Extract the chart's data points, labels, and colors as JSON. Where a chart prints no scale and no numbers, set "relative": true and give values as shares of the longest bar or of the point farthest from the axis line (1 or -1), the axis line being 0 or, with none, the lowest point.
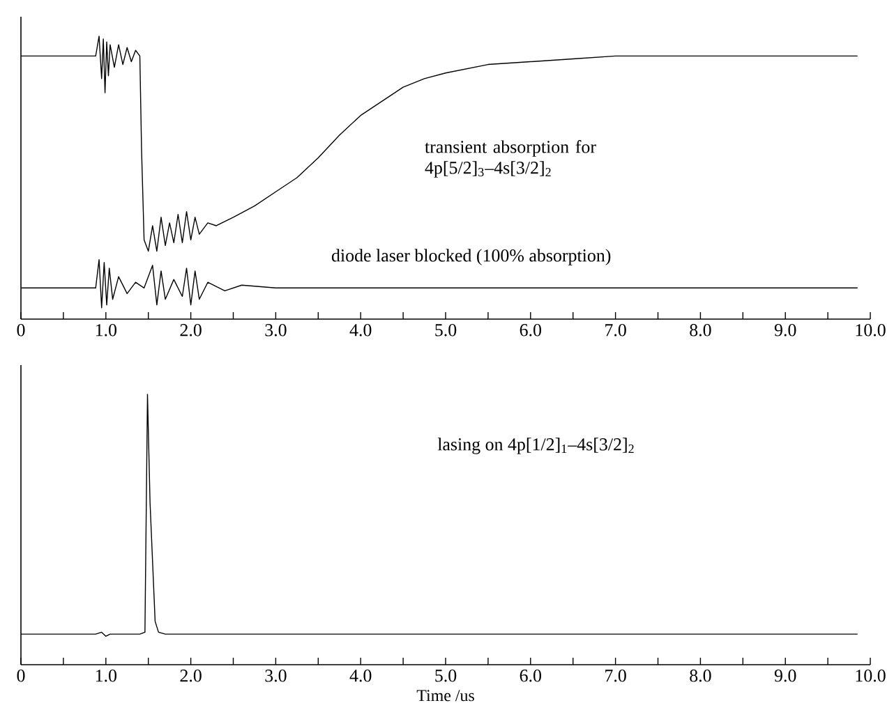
{
  "chart_data": [
    {
      "type": "line",
      "relative": true,
      "tick_labels": "x",
      "xlim": [
        0,
        10
      ],
      "xticks": [
        0,
        {
          "value": 0.5,
          "label": null
        },
        {
          "value": 1,
          "label": "1.0"
        },
        {
          "value": 1.5,
          "label": null
        },
        {
          "value": 2,
          "label": "2.0"
        },
        {
          "value": 2.5,
          "label": null
        },
        {
          "value": 3,
          "label": "3.0"
        },
        {
          "value": 3.5,
          "label": null
        },
        {
          "value": 4,
          "label": "4.0"
        },
        {
          "value": 4.5,
          "label": null
        },
        {
          "value": 5,
          "label": "5.0"
        },
        {
          "value": 5.5,
          "label": null
        },
        {
          "value": 6,
          "label": "6.0"
        },
        {
          "value": 6.5,
          "label": null
        },
        {
          "value": 7,
          "label": "7.0"
        },
        {
          "value": 7.5,
          "label": null
        },
        {
          "value": 8,
          "label": "8.0"
        },
        {
          "value": 8.5,
          "label": null
        },
        {
          "value": 9,
          "label": "9.0"
        },
        {
          "value": 9.5,
          "label": null
        },
        {
          "value": 10,
          "label": "10.0"
        }
      ],
      "annotations": [
        "transient absorption for 4p[5/2]$_{3}$–4s[3/2]$_{2}$",
        "diode laser blocked (100% absorption)"
      ],
      "series": [
        {
          "color": "#000000",
          "x": [
            0,
            0.5,
            0.88,
            0.92,
            0.95,
            0.97,
            0.99,
            1.01,
            1.03,
            1.05,
            1.1,
            1.15,
            1.2,
            1.25,
            1.3,
            1.35,
            1.4,
            1.42,
            1.45,
            1.5,
            1.55,
            1.6,
            1.65,
            1.7,
            1.75,
            1.8,
            1.85,
            1.9,
            1.95,
            2.0,
            2.05,
            2.1,
            2.2,
            2.3,
            2.5,
            2.75,
            3.0,
            3.25,
            3.5,
            3.75,
            4.0,
            4.25,
            4.5,
            4.75,
            5.0,
            5.5,
            6.0,
            6.5,
            7.0,
            8.0,
            9.0,
            9.85
          ],
          "values": [
            0.93,
            0.93,
            0.93,
            1.0,
            0.85,
            0.99,
            0.8,
            0.98,
            0.86,
            0.97,
            0.89,
            0.97,
            0.9,
            0.96,
            0.91,
            0.95,
            0.93,
            0.6,
            0.28,
            0.24,
            0.33,
            0.24,
            0.36,
            0.26,
            0.34,
            0.27,
            0.37,
            0.27,
            0.38,
            0.28,
            0.36,
            0.3,
            0.34,
            0.33,
            0.36,
            0.4,
            0.45,
            0.5,
            0.57,
            0.65,
            0.72,
            0.77,
            0.82,
            0.85,
            0.87,
            0.9,
            0.91,
            0.92,
            0.93,
            0.93,
            0.93,
            0.93
          ]
        },
        {
          "color": "#000000",
          "x": [
            0,
            0.88,
            0.92,
            0.95,
            0.98,
            1.01,
            1.04,
            1.08,
            1.15,
            1.25,
            1.35,
            1.45,
            1.55,
            1.6,
            1.65,
            1.7,
            1.8,
            1.9,
            1.95,
            2.0,
            2.05,
            2.1,
            2.2,
            2.4,
            2.6,
            3.0,
            9.85
          ],
          "values": [
            0.11,
            0.11,
            0.21,
            0.04,
            0.2,
            0.05,
            0.18,
            0.07,
            0.15,
            0.09,
            0.13,
            0.11,
            0.19,
            0.05,
            0.17,
            0.07,
            0.14,
            0.08,
            0.18,
            0.05,
            0.17,
            0.07,
            0.13,
            0.1,
            0.12,
            0.11,
            0.11
          ]
        }
      ]
    },
    {
      "type": "line",
      "relative": true,
      "tick_labels": "x",
      "xlim": [
        0,
        10
      ],
      "xlabel": "Time /us",
      "xticks": [
        0,
        {
          "value": 0.5,
          "label": null
        },
        {
          "value": 1,
          "label": "1.0"
        },
        {
          "value": 1.5,
          "label": null
        },
        {
          "value": 2,
          "label": "2.0"
        },
        {
          "value": 2.5,
          "label": null
        },
        {
          "value": 3,
          "label": "3.0"
        },
        {
          "value": 3.5,
          "label": null
        },
        {
          "value": 4,
          "label": "4.0"
        },
        {
          "value": 4.5,
          "label": null
        },
        {
          "value": 5,
          "label": "5.0"
        },
        {
          "value": 5.5,
          "label": null
        },
        {
          "value": 6,
          "label": "6.0"
        },
        {
          "value": 6.5,
          "label": null
        },
        {
          "value": 7,
          "label": "7.0"
        },
        {
          "value": 7.5,
          "label": null
        },
        {
          "value": 8,
          "label": "8.0"
        },
        {
          "value": 8.5,
          "label": null
        },
        {
          "value": 9,
          "label": "9.0"
        },
        {
          "value": 9.5,
          "label": null
        },
        {
          "value": 10,
          "label": "10.0"
        }
      ],
      "annotations": [
        "lasing on 4p[1/2]$_{1}$–4s[3/2]$_{2}$"
      ],
      "series": [
        {
          "color": "#000000",
          "x": [
            0,
            0.88,
            0.95,
            1.0,
            1.05,
            1.4,
            1.46,
            1.49,
            1.52,
            1.58,
            1.62,
            1.7,
            2.0,
            9.85
          ],
          "values": [
            0.113,
            0.113,
            0.12,
            0.105,
            0.113,
            0.113,
            0.12,
            1.0,
            0.6,
            0.16,
            0.12,
            0.113,
            0.113,
            0.113
          ]
        }
      ]
    }
  ]
}
